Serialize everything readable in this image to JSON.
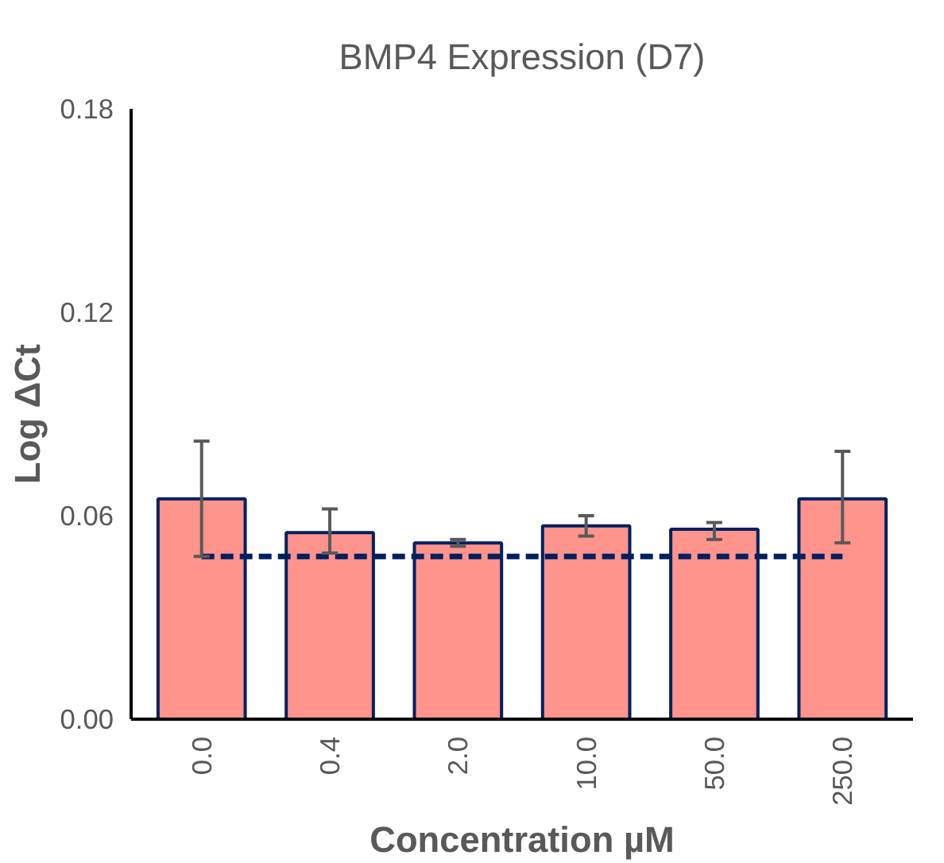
{
  "chart_data": {
    "type": "bar",
    "title": "BMP4 Expression (D7)",
    "xlabel": "Concentration µM",
    "ylabel": "Log ΔCt",
    "categories": [
      "0.0",
      "0.4",
      "2.0",
      "10.0",
      "50.0",
      "250.0"
    ],
    "series": [
      {
        "color": "#ff948c",
        "values": [
          0.065,
          0.055,
          0.052,
          0.057,
          0.056,
          0.065
        ],
        "errors": [
          [
            0.048,
            0.082
          ],
          [
            0.049,
            0.062
          ],
          [
            0.051,
            0.053
          ],
          [
            0.054,
            0.06
          ],
          [
            0.053,
            0.058
          ],
          [
            0.052,
            0.079
          ]
        ]
      },
      {
        "type": "line",
        "color": "#002060",
        "line_style": "dashed",
        "values": [
          0.048,
          0.048,
          0.048,
          0.048,
          0.048,
          0.048
        ]
      }
    ],
    "ylim": [
      0,
      0.18
    ],
    "yticks": [
      {
        "value": 0,
        "label": "0.00"
      },
      {
        "value": 0.06,
        "label": "0.06"
      },
      {
        "value": 0.12,
        "label": "0.12"
      },
      {
        "value": 0.18,
        "label": "0.18"
      }
    ],
    "grid": false,
    "marker": "none"
  }
}
